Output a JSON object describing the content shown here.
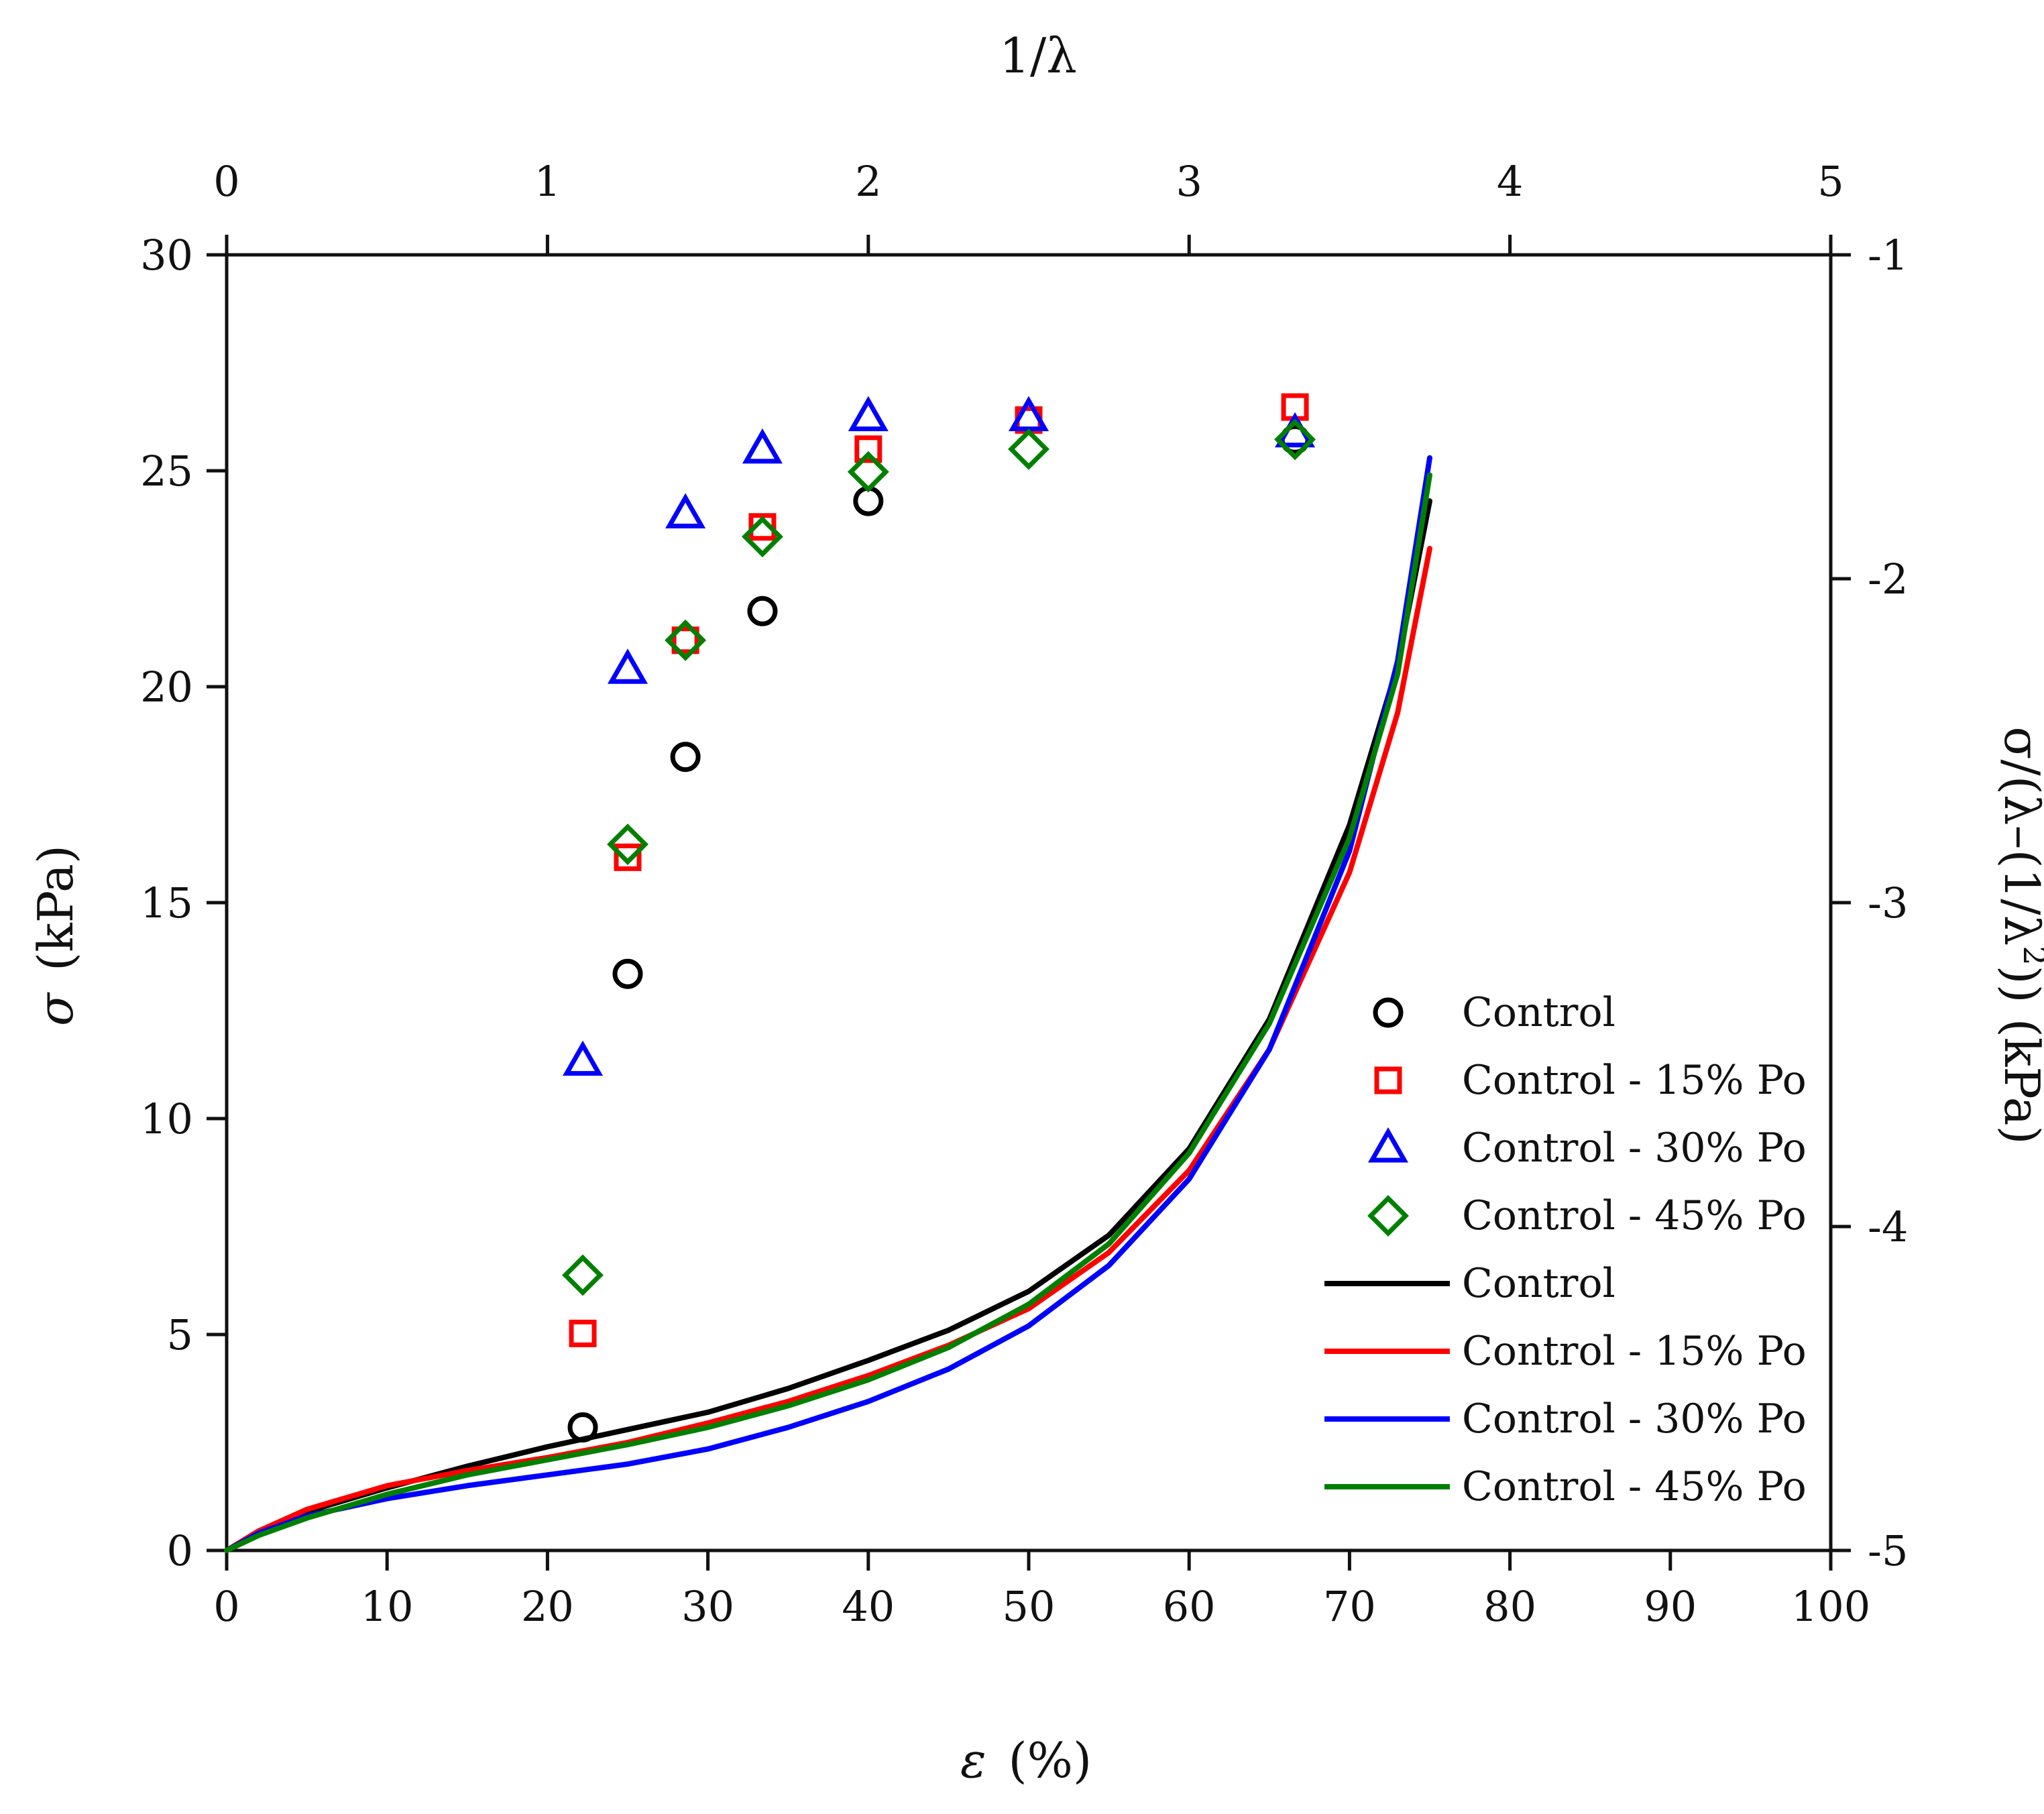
{
  "chart_data": {
    "type": "scatter",
    "bottom_axis": {
      "label_symbol": "ε",
      "label_unit": "(%)",
      "range": [
        0,
        100
      ],
      "ticks": [
        "0",
        "10",
        "20",
        "30",
        "40",
        "50",
        "60",
        "70",
        "80",
        "90",
        "100"
      ]
    },
    "top_axis": {
      "label": "1/λ",
      "range": [
        0,
        5
      ],
      "ticks": [
        "0",
        "1",
        "2",
        "3",
        "4",
        "5"
      ]
    },
    "left_axis": {
      "label_symbol": "σ",
      "label_unit": "(kPa)",
      "range": [
        0,
        30
      ],
      "ticks": [
        "0",
        "5",
        "10",
        "15",
        "20",
        "25",
        "30"
      ]
    },
    "right_axis": {
      "label_main": "σ/(λ–(1/λ",
      "label_sup": "2",
      "label_tail": ")) (kPa)",
      "range": [
        -5,
        -1
      ],
      "ticks": [
        "-5",
        "-4",
        "-3",
        "-2",
        "-1"
      ]
    },
    "scatter_series": [
      {
        "name": "Control",
        "marker": "circle",
        "color": "#000000",
        "x": [
          1.11,
          1.25,
          1.43,
          1.67,
          2.0,
          3.33
        ],
        "y": [
          -4.62,
          -3.22,
          -2.55,
          -2.1,
          -1.76,
          -1.57
        ]
      },
      {
        "name": "Control - 15% Po",
        "marker": "square",
        "color": "#ff0000",
        "x": [
          1.11,
          1.25,
          1.43,
          1.67,
          2.0,
          3.33,
          2.5
        ],
        "y": [
          -4.33,
          -2.86,
          -2.19,
          -1.84,
          -1.6,
          -1.47,
          -1.51
        ]
      },
      {
        "name": "Control - 30% Po",
        "marker": "triangle",
        "color": "#0000ff",
        "x": [
          1.11,
          1.25,
          1.43,
          1.67,
          2.0,
          2.5,
          3.33
        ],
        "y": [
          -3.49,
          -2.28,
          -1.8,
          -1.6,
          -1.5,
          -1.5,
          -1.55
        ]
      },
      {
        "name": "Control - 45% Po",
        "marker": "diamond",
        "color": "#008000",
        "x": [
          1.11,
          1.25,
          1.43,
          1.67,
          2.0,
          2.5,
          3.33
        ],
        "y": [
          -4.15,
          -2.82,
          -2.19,
          -1.87,
          -1.67,
          -1.6,
          -1.57
        ]
      }
    ],
    "line_series": [
      {
        "name": "Control",
        "color": "#000000",
        "x": [
          0,
          2,
          5,
          10,
          15,
          20,
          25,
          30,
          35,
          40,
          45,
          50,
          55,
          60,
          65,
          70,
          73,
          75
        ],
        "y": [
          0,
          0.45,
          0.9,
          1.45,
          1.95,
          2.4,
          2.8,
          3.2,
          3.75,
          4.4,
          5.1,
          6.0,
          7.3,
          9.3,
          12.3,
          16.8,
          20.5,
          24.3
        ]
      },
      {
        "name": "Control - 15% Po",
        "color": "#ff0000",
        "x": [
          0,
          2,
          5,
          10,
          15,
          20,
          25,
          30,
          35,
          40,
          45,
          50,
          55,
          60,
          65,
          70,
          73,
          75
        ],
        "y": [
          0,
          0.45,
          0.95,
          1.5,
          1.85,
          2.15,
          2.5,
          2.95,
          3.45,
          4.05,
          4.75,
          5.6,
          6.9,
          8.8,
          11.6,
          15.7,
          19.4,
          23.2
        ]
      },
      {
        "name": "Control - 30% Po",
        "color": "#0000ff",
        "x": [
          0,
          2,
          5,
          10,
          15,
          20,
          25,
          30,
          35,
          40,
          45,
          50,
          55,
          60,
          65,
          70,
          73,
          75
        ],
        "y": [
          0,
          0.4,
          0.8,
          1.2,
          1.5,
          1.75,
          2.0,
          2.35,
          2.85,
          3.45,
          4.2,
          5.2,
          6.6,
          8.6,
          11.6,
          16.2,
          20.6,
          25.3
        ]
      },
      {
        "name": "Control - 45% Po",
        "color": "#008000",
        "x": [
          0,
          2,
          5,
          10,
          15,
          20,
          25,
          30,
          35,
          40,
          45,
          50,
          55,
          60,
          65,
          70,
          73,
          75
        ],
        "y": [
          0,
          0.35,
          0.75,
          1.3,
          1.75,
          2.1,
          2.45,
          2.85,
          3.35,
          3.95,
          4.7,
          5.7,
          7.1,
          9.2,
          12.2,
          16.5,
          20.3,
          24.9
        ]
      }
    ]
  }
}
